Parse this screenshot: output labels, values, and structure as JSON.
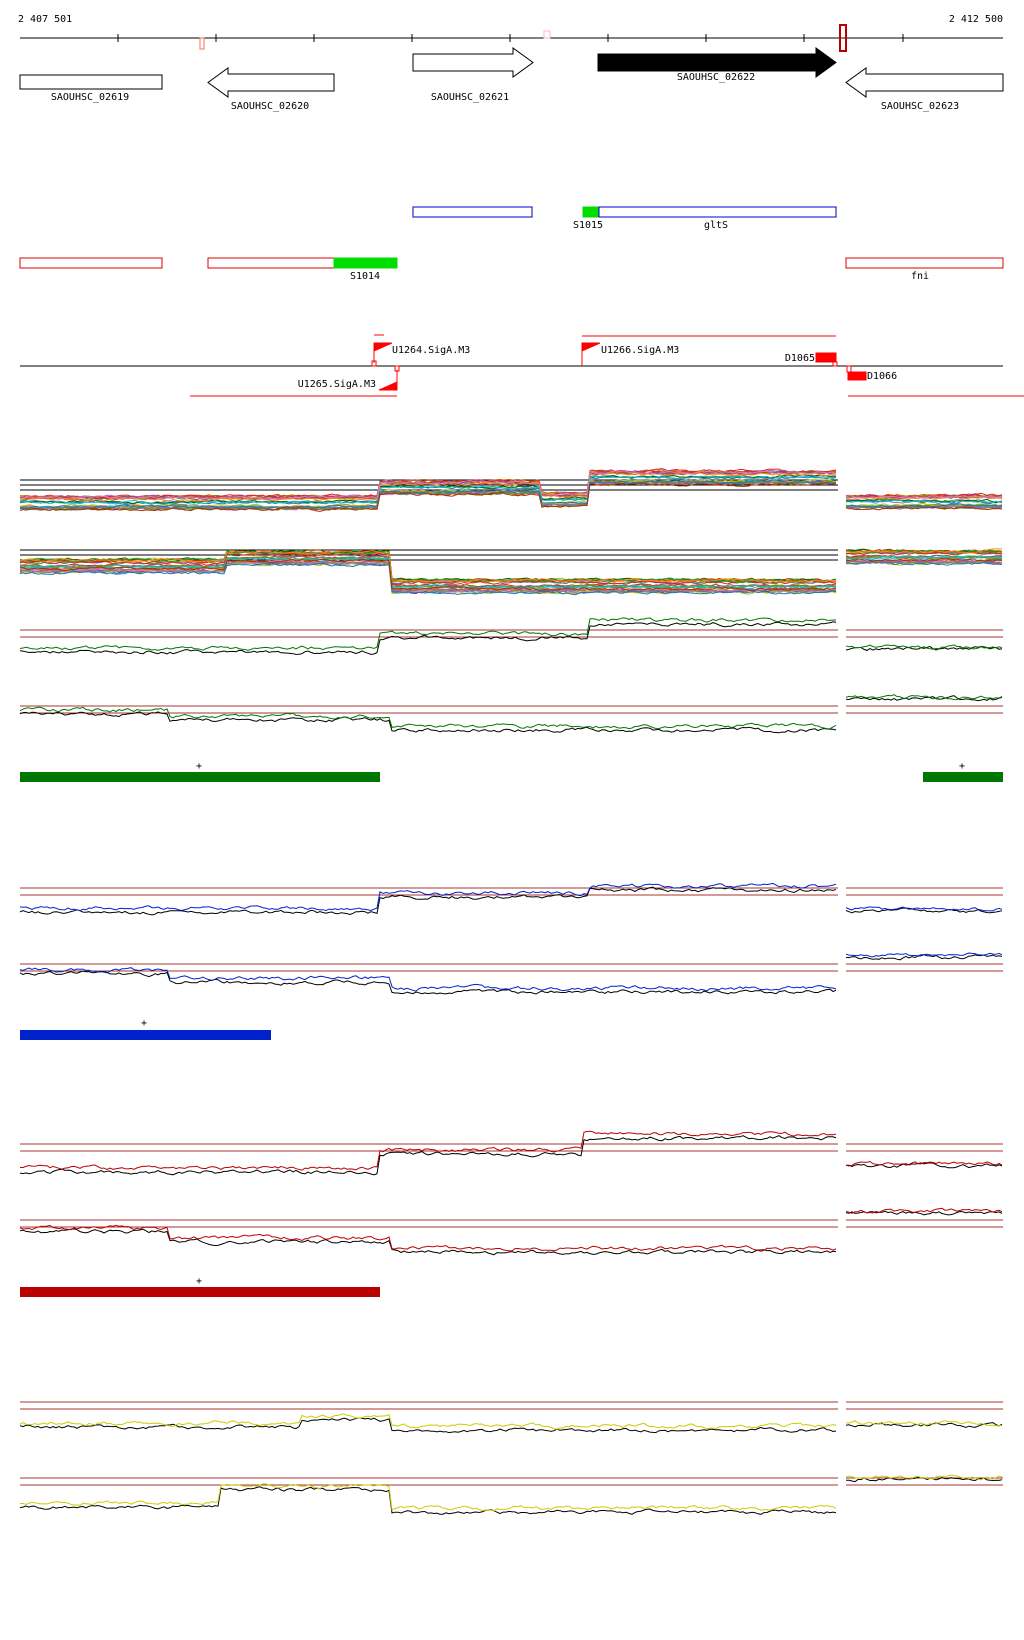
{
  "coordinates": {
    "start": "2 407 501",
    "end": "2 412 500"
  },
  "genes": [
    {
      "name": "SAOUHSC_02619",
      "strand": "none",
      "fill": "none"
    },
    {
      "name": "SAOUHSC_02620",
      "strand": "-",
      "fill": "none"
    },
    {
      "name": "SAOUHSC_02621",
      "strand": "+",
      "fill": "none"
    },
    {
      "name": "SAOUHSC_02622",
      "strand": "+",
      "fill": "#000000"
    },
    {
      "name": "SAOUHSC_02623",
      "strand": "-",
      "fill": "none"
    }
  ],
  "annotations": {
    "blue_segments": [
      {
        "name": "S1015"
      },
      {
        "name": "gltS"
      }
    ],
    "red_segments": [
      {
        "name": "S1014"
      },
      {
        "name": "fni"
      }
    ]
  },
  "promoters": [
    {
      "name": "U1264.SigA.M3"
    },
    {
      "name": "U1265.SigA.M3"
    },
    {
      "name": "U1266.SigA.M3"
    },
    {
      "name": "D1065"
    },
    {
      "name": "D1066"
    }
  ],
  "condition_colors": [
    "#007700",
    "#0022cc",
    "#bb0000",
    "#cccc00"
  ],
  "bar_marker": "+",
  "colors": {
    "annotation_blue": "#0000cc",
    "annotation_red": "#dd0000",
    "highlight_green": "#00dd00",
    "promoter_red": "#ff0000"
  }
}
